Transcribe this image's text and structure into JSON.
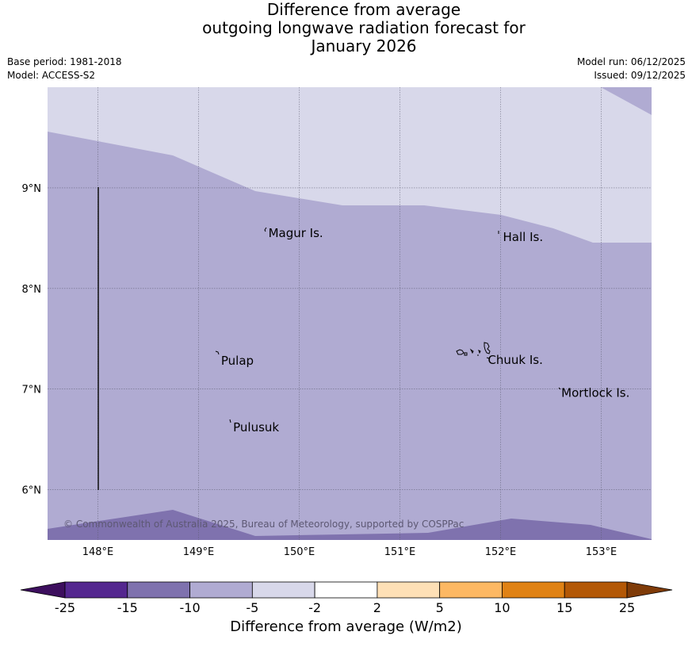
{
  "header": {
    "title_line1": "Difference from average",
    "title_line2": "outgoing longwave radiation forecast for",
    "title_line3": "January 2026",
    "base_period": "Base period: 1981-2018",
    "model": "Model: ACCESS-S2",
    "model_run": "Model run: 06/12/2025",
    "issued": "Issued: 09/12/2025"
  },
  "map": {
    "lon_range": [
      147.5,
      153.5
    ],
    "lat_range": [
      5.5,
      10.0
    ],
    "lon_ticks": [
      {
        "value": 148,
        "label": "148°E"
      },
      {
        "value": 149,
        "label": "149°E"
      },
      {
        "value": 150,
        "label": "150°E"
      },
      {
        "value": 151,
        "label": "151°E"
      },
      {
        "value": 152,
        "label": "152°E"
      },
      {
        "value": 153,
        "label": "153°E"
      }
    ],
    "lat_ticks": [
      {
        "value": 9,
        "label": "9°N"
      },
      {
        "value": 8,
        "label": "8°N"
      },
      {
        "value": 7,
        "label": "7°N"
      },
      {
        "value": 6,
        "label": "6°N"
      }
    ],
    "places": [
      {
        "name": "Magur Is.",
        "lon": 149.67,
        "lat": 8.55
      },
      {
        "name": "Hall Is.",
        "lon": 152.0,
        "lat": 8.51
      },
      {
        "name": "Pulap",
        "lon": 149.2,
        "lat": 7.28
      },
      {
        "name": "Chuuk Is.",
        "lon": 151.85,
        "lat": 7.29
      },
      {
        "name": "Mortlock Is.",
        "lon": 152.58,
        "lat": 6.96
      },
      {
        "name": "Pulusuk",
        "lon": 149.32,
        "lat": 6.62
      }
    ],
    "fill_colors": {
      "lightest": "#d8d8ea",
      "light": "#b0abd2",
      "medium": "#7f72ae"
    },
    "copyright": "© Commonwealth of Australia 2025, Bureau of Meteorology, supported by COSPPac"
  },
  "colorbar": {
    "label": "Difference from average (W/m2)",
    "tick_labels": [
      "-25",
      "-15",
      "-10",
      "-5",
      "-2",
      "2",
      "5",
      "10",
      "15",
      "25"
    ],
    "under_color": "#3d0f5e",
    "over_color": "#7f3b08",
    "colors": [
      "#54278f",
      "#7f72ae",
      "#b0abd2",
      "#d8d8ea",
      "#ffffff",
      "#fee0b6",
      "#fdb863",
      "#e08214",
      "#b35806"
    ]
  }
}
